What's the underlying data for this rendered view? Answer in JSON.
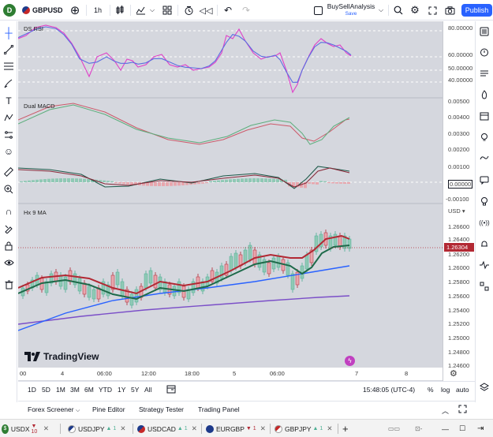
{
  "toolbar": {
    "avatar_letter": "D",
    "symbol": "GBPUSD",
    "interval": "1h",
    "layout_name": "BuySellAnalysis",
    "layout_sub": "Save",
    "publish_label": "Publish"
  },
  "panes": {
    "rsi": {
      "title": "DS RSI",
      "levels": [
        "80.00000",
        "60.00000",
        "50.00000",
        "40.00000"
      ]
    },
    "macd_top": {
      "title": "Dual MACD",
      "levels": [
        "0.00500",
        "0.00400",
        "0.00300",
        "0.00200"
      ]
    },
    "macd_bottom": {
      "levels": [
        "0.00100",
        "0.00000",
        "-0.00100"
      ]
    },
    "price": {
      "title": "Hx 9 MA",
      "currency": "USD",
      "levels": [
        "1.26600",
        "1.26400",
        "1.26200",
        "1.26000",
        "1.25800",
        "1.25600",
        "1.25400",
        "1.25200",
        "1.25000",
        "1.24800",
        "1.24600"
      ],
      "current_price": "1.26304"
    }
  },
  "watermark": "TradingView",
  "time_axis": [
    "00",
    "4",
    "06:00",
    "12:00",
    "18:00",
    "5",
    "06:00",
    "7",
    "8"
  ],
  "bottom_bar": {
    "ranges": [
      "1D",
      "5D",
      "1M",
      "3M",
      "6M",
      "YTD",
      "1Y",
      "5Y",
      "All"
    ],
    "clock": "15:48:05 (UTC-4)",
    "percent": "%",
    "log": "log",
    "auto": "auto"
  },
  "panel_tabs": [
    "Forex Screener",
    "Pine Editor",
    "Strategy Tester",
    "Trading Panel"
  ],
  "taskbar": {
    "tabs": [
      {
        "label": "USDX",
        "extra": "▼ 10"
      },
      {
        "label": "USDJPY",
        "extra": "▲ 1"
      },
      {
        "label": "USDCAD",
        "extra": "▲ 1"
      },
      {
        "label": "EURGBP",
        "extra": "▼ 1"
      },
      {
        "label": "GBPJPY",
        "extra": "▲ 1"
      }
    ]
  },
  "colors": {
    "accent": "#2962ff",
    "up": "#4caf93",
    "down": "#b22833",
    "rsi_pink": "#e040c8",
    "rsi_blue": "#5b6ee0"
  }
}
